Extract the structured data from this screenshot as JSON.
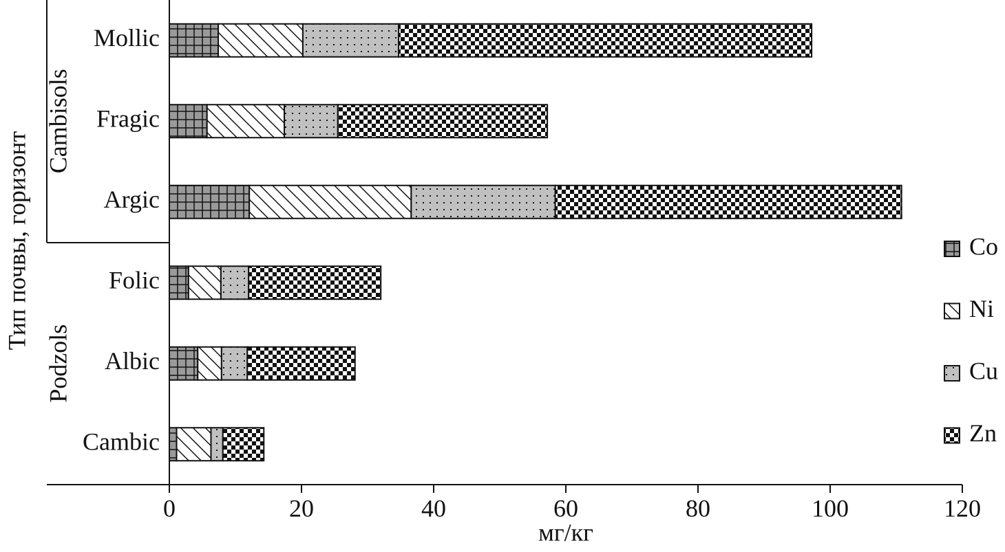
{
  "chart_data": {
    "type": "stacked-barh",
    "ylabel": "Тип почвы, горизонт",
    "xlabel": "мг/кг",
    "groups": [
      {
        "name": "Cambisols",
        "categories": [
          "Mollic",
          "Fragic",
          "Argic"
        ]
      },
      {
        "name": "Podzols",
        "categories": [
          "Folic",
          "Albic",
          "Cambic"
        ]
      }
    ],
    "series": [
      {
        "name": "Co",
        "color": "#9a9a9a",
        "pattern": "grid",
        "values": [
          7.4,
          5.7,
          12.1,
          2.9,
          4.3,
          1.1
        ]
      },
      {
        "name": "Ni",
        "color": "#ffffff",
        "pattern": "diagonal",
        "values": [
          12.8,
          11.7,
          24.5,
          4.9,
          3.6,
          5.2
        ]
      },
      {
        "name": "Cu",
        "color": "#c0c0c0",
        "pattern": "dots",
        "values": [
          14.5,
          8.1,
          21.8,
          4.2,
          3.9,
          1.8
        ]
      },
      {
        "name": "Zn",
        "color": "#111111",
        "pattern": "checker",
        "values": [
          62.5,
          31.7,
          52.4,
          20.0,
          16.3,
          6.2
        ]
      }
    ],
    "xlim": [
      0,
      120
    ],
    "xticks": [
      0,
      20,
      40,
      60,
      80,
      100,
      120
    ],
    "legend": "right"
  }
}
